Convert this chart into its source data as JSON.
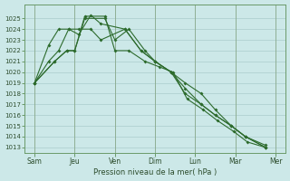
{
  "xlabel": "Pression niveau de la mer( hPa )",
  "background_color": "#cce8e8",
  "grid_color": "#aacccc",
  "line_color": "#2d6b2d",
  "ylim": [
    1012.5,
    1026.3
  ],
  "yticks": [
    1013,
    1014,
    1015,
    1016,
    1017,
    1018,
    1019,
    1020,
    1021,
    1022,
    1023,
    1024,
    1025
  ],
  "xtick_labels": [
    "Sam",
    "Jeu",
    "Ven",
    "Dim",
    "Lun",
    "Mar",
    "Mer"
  ],
  "xtick_positions": [
    0,
    2,
    4,
    6,
    8,
    10,
    12
  ],
  "series": [
    {
      "x": [
        0,
        1.0,
        1.6,
        2.0,
        2.5,
        3.5,
        4.0,
        4.7,
        5.5,
        6.0,
        6.8,
        7.5,
        8.3,
        9.0,
        9.8,
        10.5,
        11.5
      ],
      "y": [
        1019,
        1021,
        1022,
        1022,
        1025,
        1025,
        1023,
        1024,
        1022,
        1021,
        1020,
        1018,
        1017,
        1016,
        1015,
        1014,
        1013
      ]
    },
    {
      "x": [
        0,
        1.0,
        1.6,
        2.0,
        2.5,
        3.5,
        4.0,
        4.7,
        5.5,
        6.2,
        6.9,
        7.6,
        8.4,
        9.1,
        9.9,
        10.6,
        11.5
      ],
      "y": [
        1019,
        1021,
        1022,
        1022,
        1025.2,
        1025.2,
        1022,
        1022,
        1021,
        1020.5,
        1020,
        1017.5,
        1016.5,
        1015.5,
        1014.5,
        1013.5,
        1013
      ]
    },
    {
      "x": [
        0,
        0.7,
        1.2,
        1.7,
        2.2,
        2.8,
        3.3,
        4.5,
        5.3,
        6.0,
        6.8,
        7.5,
        8.3,
        9.0,
        9.8,
        10.5,
        11.5
      ],
      "y": [
        1019,
        1022.5,
        1024,
        1024,
        1023.5,
        1025.3,
        1024.5,
        1024,
        1022,
        1021,
        1020,
        1018.5,
        1017,
        1016,
        1015,
        1014,
        1013
      ]
    },
    {
      "x": [
        0,
        0.7,
        1.2,
        1.7,
        2.2,
        2.8,
        3.3,
        4.5,
        5.3,
        6.0,
        6.8,
        7.5,
        8.3,
        9.0,
        9.8,
        10.5,
        11.5
      ],
      "y": [
        1019,
        1021,
        1022,
        1024,
        1024,
        1024,
        1023,
        1024,
        1022,
        1021,
        1020,
        1019,
        1018,
        1016.5,
        1015,
        1014,
        1013.2
      ]
    }
  ]
}
